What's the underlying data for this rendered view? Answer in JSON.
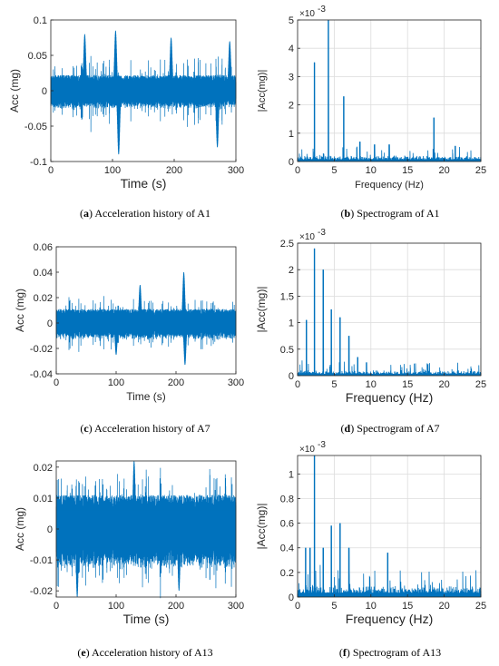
{
  "colors": {
    "signal": "#0072BD",
    "axis": "#262626",
    "grid": "#dcdcdc"
  },
  "captions": [
    {
      "letter": "a",
      "text": "Acceleration history of A1"
    },
    {
      "letter": "b",
      "text": "Spectrogram of A1"
    },
    {
      "letter": "c",
      "text": "Acceleration history of A7"
    },
    {
      "letter": "d",
      "text": "Spectrogram of A7"
    },
    {
      "letter": "e",
      "text": "Acceleration history of A13"
    },
    {
      "letter": "f",
      "text": "Spectrogram of A13"
    }
  ],
  "chart_data": [
    {
      "id": "a",
      "type": "line",
      "xlabel": "Time (s)",
      "ylabel": "Acc (mg)",
      "xlim": [
        0,
        300
      ],
      "ylim": [
        -0.1,
        0.1
      ],
      "xticks": [
        0,
        100,
        200,
        300
      ],
      "xtick_labels": [
        "0",
        "100",
        "200",
        "300"
      ],
      "yticks": [
        -0.1,
        -0.05,
        0,
        0.05,
        0.1
      ],
      "ytick_labels": [
        "-0.1",
        "-0.05",
        "0",
        "0.05",
        "0.1"
      ],
      "grid": false,
      "x_exponent_label": "",
      "signal": {
        "kind": "time_history",
        "duration": 300,
        "envelope_base": 0.022,
        "envelope_extreme": 0.05,
        "bursts": [
          {
            "x": 55,
            "amplitude": 0.08
          },
          {
            "x": 105,
            "amplitude": 0.085
          },
          {
            "x": 195,
            "amplitude": 0.075
          },
          {
            "x": 290,
            "amplitude": 0.07
          },
          {
            "x": 110,
            "amplitude": -0.09
          },
          {
            "x": 270,
            "amplitude": -0.08
          }
        ]
      }
    },
    {
      "id": "b",
      "type": "line",
      "xlabel": "Frequency (Hz)",
      "ylabel": "|Acc(mg)|",
      "xlim": [
        0,
        25
      ],
      "ylim": [
        0,
        5
      ],
      "xticks": [
        0,
        5,
        10,
        15,
        20,
        25
      ],
      "xtick_labels": [
        "0",
        "5",
        "10",
        "15",
        "20",
        "25"
      ],
      "yticks": [
        0,
        1,
        2,
        3,
        4,
        5
      ],
      "ytick_labels": [
        "0",
        "1",
        "2",
        "3",
        "4",
        "5"
      ],
      "grid": true,
      "y_multiplier": "×10",
      "y_multiplier_exponent": "-3",
      "signal": {
        "kind": "spectrum",
        "noise_floor": 0.22,
        "noise_extreme": 0.45,
        "peaks": [
          {
            "x": 2.3,
            "y": 3.5
          },
          {
            "x": 4.2,
            "y": 5.0
          },
          {
            "x": 6.3,
            "y": 2.3
          },
          {
            "x": 8.5,
            "y": 0.7
          },
          {
            "x": 10.5,
            "y": 0.6
          },
          {
            "x": 12.5,
            "y": 0.6
          },
          {
            "x": 18.6,
            "y": 1.55
          },
          {
            "x": 21.5,
            "y": 0.55
          }
        ]
      }
    },
    {
      "id": "c",
      "type": "line",
      "xlabel": "Time (s)",
      "ylabel": "Acc (mg)",
      "xlim": [
        0,
        300
      ],
      "ylim": [
        -0.04,
        0.06
      ],
      "xticks": [
        0,
        100,
        200,
        300
      ],
      "xtick_labels": [
        "0",
        "100",
        "200",
        "300"
      ],
      "yticks": [
        -0.04,
        -0.02,
        0,
        0.02,
        0.04,
        0.06
      ],
      "ytick_labels": [
        "-0.04",
        "-0.02",
        "0",
        "0.02",
        "0.04",
        "0.06"
      ],
      "grid": false,
      "signal": {
        "kind": "time_history",
        "duration": 300,
        "envelope_base": 0.011,
        "envelope_extreme": 0.022,
        "bursts": [
          {
            "x": 140,
            "amplitude": 0.03
          },
          {
            "x": 213,
            "amplitude": 0.04
          },
          {
            "x": 215,
            "amplitude": -0.033
          },
          {
            "x": 100,
            "amplitude": -0.025
          }
        ]
      }
    },
    {
      "id": "d",
      "type": "line",
      "xlabel": "Frequency (Hz)",
      "ylabel": "|Acc(mg)|",
      "xlim": [
        0,
        25
      ],
      "ylim": [
        0,
        2.5
      ],
      "xticks": [
        0,
        5,
        10,
        15,
        20,
        25
      ],
      "xtick_labels": [
        "0",
        "5",
        "10",
        "15",
        "20",
        "25"
      ],
      "yticks": [
        0,
        0.5,
        1,
        1.5,
        2,
        2.5
      ],
      "ytick_labels": [
        "0",
        "0.5",
        "1",
        "1.5",
        "2",
        "2.5"
      ],
      "grid": true,
      "y_multiplier": "×10",
      "y_multiplier_exponent": "-3",
      "signal": {
        "kind": "spectrum",
        "noise_floor": 0.1,
        "noise_extreme": 0.22,
        "peaks": [
          {
            "x": 1.2,
            "y": 1.05
          },
          {
            "x": 2.3,
            "y": 2.4
          },
          {
            "x": 3.5,
            "y": 2.0
          },
          {
            "x": 4.6,
            "y": 1.25
          },
          {
            "x": 5.8,
            "y": 1.1
          },
          {
            "x": 7.0,
            "y": 0.75
          },
          {
            "x": 8.2,
            "y": 0.35
          },
          {
            "x": 9.4,
            "y": 0.25
          }
        ]
      }
    },
    {
      "id": "e",
      "type": "line",
      "xlabel": "Time (s)",
      "ylabel": "Acc (mg)",
      "xlim": [
        0,
        300
      ],
      "ylim": [
        -0.022,
        0.022
      ],
      "xticks": [
        0,
        100,
        200,
        300
      ],
      "xtick_labels": [
        "0",
        "100",
        "200",
        "300"
      ],
      "yticks": [
        -0.02,
        -0.01,
        0,
        0.01,
        0.02
      ],
      "ytick_labels": [
        "-0.02",
        "-0.01",
        "0",
        "0.01",
        "0.02"
      ],
      "grid": false,
      "signal": {
        "kind": "time_history",
        "duration": 300,
        "envelope_base": 0.011,
        "envelope_extreme": 0.02,
        "bursts": [
          {
            "x": 130,
            "amplitude": 0.022
          },
          {
            "x": 35,
            "amplitude": -0.022
          },
          {
            "x": 205,
            "amplitude": -0.02
          }
        ]
      }
    },
    {
      "id": "f",
      "type": "line",
      "xlabel": "Frequency (Hz)",
      "ylabel": "|Acc(mg)|",
      "xlim": [
        0,
        25
      ],
      "ylim": [
        0,
        1.15
      ],
      "xticks": [
        0,
        5,
        10,
        15,
        20,
        25
      ],
      "xtick_labels": [
        "0",
        "5",
        "10",
        "15",
        "20",
        "25"
      ],
      "yticks": [
        0,
        0.2,
        0.4,
        0.6,
        0.8,
        1
      ],
      "ytick_labels": [
        "0",
        "0.2",
        "0.4",
        "0.6",
        "0.8",
        "1"
      ],
      "grid": true,
      "y_multiplier": "×10",
      "y_multiplier_exponent": "-3",
      "signal": {
        "kind": "spectrum",
        "noise_floor": 0.1,
        "noise_extreme": 0.2,
        "peaks": [
          {
            "x": 1.1,
            "y": 0.4
          },
          {
            "x": 1.7,
            "y": 0.4
          },
          {
            "x": 2.3,
            "y": 1.15
          },
          {
            "x": 3.5,
            "y": 0.4
          },
          {
            "x": 4.6,
            "y": 0.58
          },
          {
            "x": 5.8,
            "y": 0.6
          },
          {
            "x": 7.0,
            "y": 0.4
          },
          {
            "x": 12.3,
            "y": 0.36
          }
        ]
      }
    }
  ]
}
